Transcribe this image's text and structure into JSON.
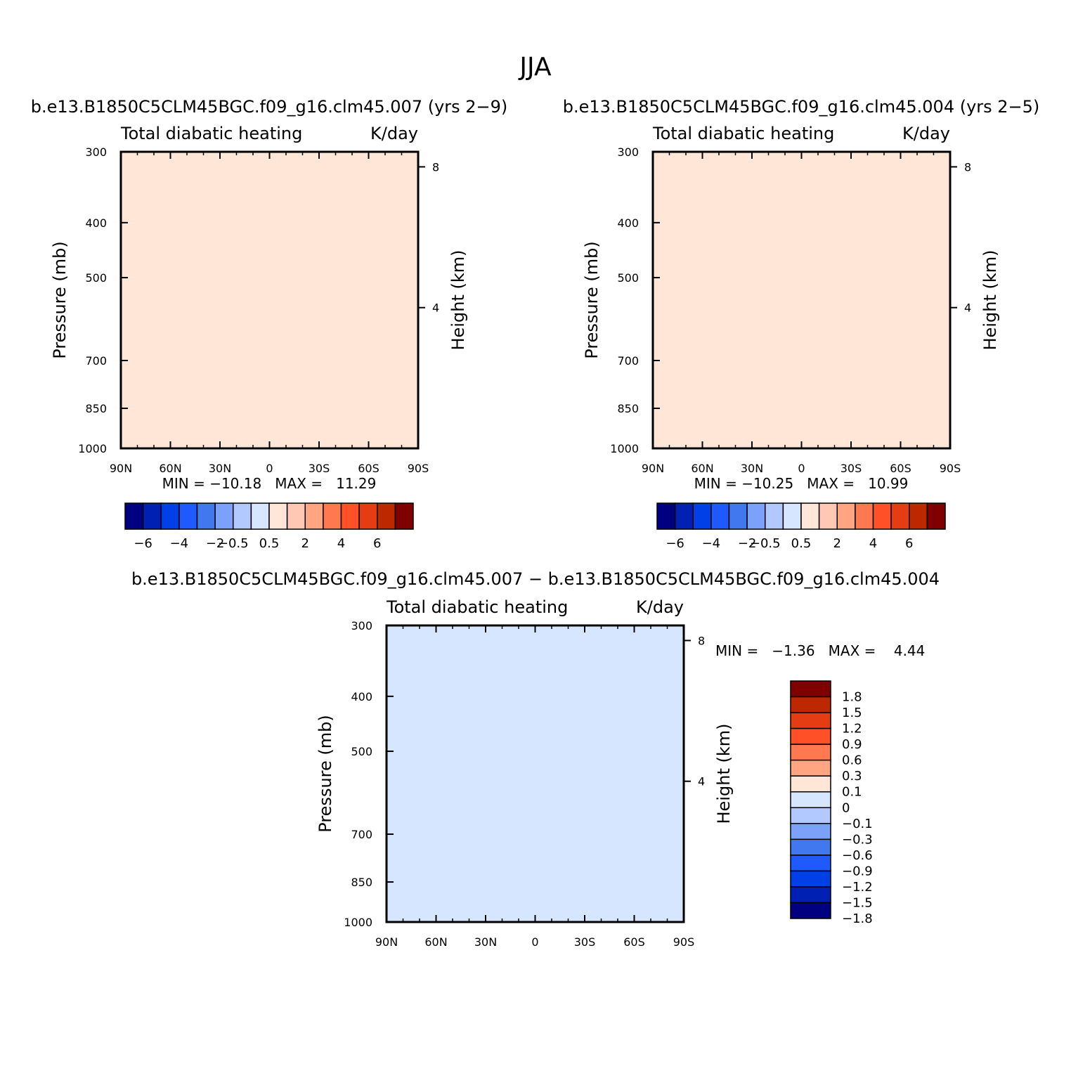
{
  "figure": {
    "season_title": "JJA"
  },
  "panels": [
    {
      "case_title": "b.e13.B1850C5CLM45BGC.f09_g16.clm45.007 (yrs 2−9)",
      "left_string": "Total diabatic heating",
      "right_string": "K/day",
      "y_label": "Pressure (mb)",
      "y2_label": "Height (km)",
      "min_max": "MIN = −10.18   MAX =   11.29"
    },
    {
      "case_title": "b.e13.B1850C5CLM45BGC.f09_g16.clm45.004 (yrs 2−5)",
      "left_string": "Total diabatic heating",
      "right_string": "K/day",
      "y_label": "Pressure (mb)",
      "y2_label": "Height (km)",
      "min_max": "MIN = −10.25   MAX =   10.99"
    },
    {
      "case_title": "b.e13.B1850C5CLM45BGC.f09_g16.clm45.007 − b.e13.B1850C5CLM45BGC.f09_g16.clm45.004",
      "left_string": "Total diabatic heating",
      "right_string": "K/day",
      "y_label": "Pressure (mb)",
      "y2_label": "Height (km)",
      "min_max": "MIN =   −1.36   MAX =    4.44"
    }
  ],
  "chart_data": [
    {
      "type": "contour",
      "title": "Total diabatic heating",
      "units": "K/day",
      "xlabel": "",
      "ylabel": "Pressure (mb)",
      "y2label": "Height (km)",
      "x_ticks": [
        "90N",
        "60N",
        "30N",
        "0",
        "30S",
        "60S",
        "90S"
      ],
      "x_tick_values": [
        90,
        60,
        30,
        0,
        -30,
        -60,
        -90
      ],
      "xlim": [
        90,
        -90
      ],
      "y_ticks": [
        "300",
        "400",
        "500",
        "700",
        "850",
        "1000"
      ],
      "y_tick_values": [
        300,
        400,
        500,
        700,
        850,
        1000
      ],
      "ylim": [
        1000,
        300
      ],
      "y_scale": "log",
      "y2_ticks": [
        "8",
        "4"
      ],
      "y2_tick_values": [
        8,
        4
      ],
      "contour_levels": [
        -6,
        -5,
        -4,
        -3,
        -2,
        -1,
        -0.5,
        0,
        0.5,
        1,
        2,
        3,
        4,
        5,
        6
      ],
      "colorbar_labels": [
        "−6",
        "−4",
        "−2",
        "−0.5",
        "0.5",
        "2",
        "4",
        "6"
      ],
      "colorbar_colors": [
        "#000080",
        "#0020b4",
        "#0040e6",
        "#1e5aff",
        "#4178f0",
        "#7ba1fa",
        "#b2c9ff",
        "#d6e6ff",
        "#ffe6d6",
        "#ffc8b4",
        "#ffa582",
        "#ff7850",
        "#ff5028",
        "#e63c14",
        "#be2800",
        "#800000"
      ],
      "min": -10.18,
      "max": 11.29
    },
    {
      "type": "contour",
      "title": "Total diabatic heating",
      "units": "K/day",
      "xlabel": "",
      "ylabel": "Pressure (mb)",
      "y2label": "Height (km)",
      "x_ticks": [
        "90N",
        "60N",
        "30N",
        "0",
        "30S",
        "60S",
        "90S"
      ],
      "x_tick_values": [
        90,
        60,
        30,
        0,
        -30,
        -60,
        -90
      ],
      "xlim": [
        90,
        -90
      ],
      "y_ticks": [
        "300",
        "400",
        "500",
        "700",
        "850",
        "1000"
      ],
      "y_tick_values": [
        300,
        400,
        500,
        700,
        850,
        1000
      ],
      "ylim": [
        1000,
        300
      ],
      "y_scale": "log",
      "y2_ticks": [
        "8",
        "4"
      ],
      "y2_tick_values": [
        8,
        4
      ],
      "contour_levels": [
        -6,
        -5,
        -4,
        -3,
        -2,
        -1,
        -0.5,
        0,
        0.5,
        1,
        2,
        3,
        4,
        5,
        6
      ],
      "colorbar_labels": [
        "−6",
        "−4",
        "−2",
        "−0.5",
        "0.5",
        "2",
        "4",
        "6"
      ],
      "colorbar_colors": [
        "#000080",
        "#0020b4",
        "#0040e6",
        "#1e5aff",
        "#4178f0",
        "#7ba1fa",
        "#b2c9ff",
        "#d6e6ff",
        "#ffe6d6",
        "#ffc8b4",
        "#ffa582",
        "#ff7850",
        "#ff5028",
        "#e63c14",
        "#be2800",
        "#800000"
      ],
      "min": -10.25,
      "max": 10.99
    },
    {
      "type": "contour",
      "title": "Total diabatic heating",
      "units": "K/day",
      "xlabel": "",
      "ylabel": "Pressure (mb)",
      "y2label": "Height (km)",
      "x_ticks": [
        "90N",
        "60N",
        "30N",
        "0",
        "30S",
        "60S",
        "90S"
      ],
      "x_tick_values": [
        90,
        60,
        30,
        0,
        -30,
        -60,
        -90
      ],
      "xlim": [
        90,
        -90
      ],
      "y_ticks": [
        "300",
        "400",
        "500",
        "700",
        "850",
        "1000"
      ],
      "y_tick_values": [
        300,
        400,
        500,
        700,
        850,
        1000
      ],
      "ylim": [
        1000,
        300
      ],
      "y_scale": "log",
      "y2_ticks": [
        "8",
        "4"
      ],
      "y2_tick_values": [
        8,
        4
      ],
      "contour_levels": [
        -1.8,
        -1.5,
        -1.2,
        -0.9,
        -0.6,
        -0.3,
        -0.1,
        0,
        0.1,
        0.3,
        0.6,
        0.9,
        1.2,
        1.5,
        1.8
      ],
      "colorbar_labels": [
        "1.8",
        "1.5",
        "1.2",
        "0.9",
        "0.6",
        "0.3",
        "0.1",
        "0",
        "−0.1",
        "−0.3",
        "−0.6",
        "−0.9",
        "−1.2",
        "−1.5",
        "−1.8"
      ],
      "colorbar_colors": [
        "#800000",
        "#be2800",
        "#e63c14",
        "#ff5028",
        "#ff7850",
        "#ffa582",
        "#ffe6d6",
        "#d6e6ff",
        "#b2c9ff",
        "#7ba1fa",
        "#4178f0",
        "#1e5aff",
        "#0040e6",
        "#0020b4",
        "#000080"
      ],
      "min": -1.36,
      "max": 4.44
    }
  ]
}
